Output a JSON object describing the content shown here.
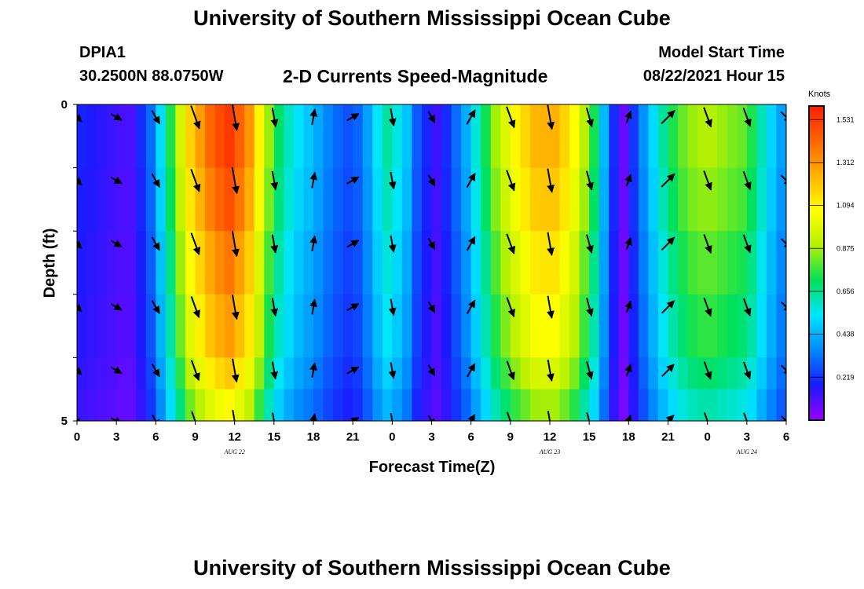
{
  "header": {
    "title": "University of Southern Mississippi Ocean Cube",
    "station": "DPIA1",
    "coordinates": "30.2500N  88.0750W",
    "subtitle": "2-D Currents Speed-Magnitude",
    "model_start_label": "Model Start Time",
    "model_start_value": "08/22/2021 Hour 15"
  },
  "footer": {
    "title": "University of Southern Mississippi Ocean Cube"
  },
  "chart_data": {
    "type": "heatmap",
    "title": "2-D Currents Speed-Magnitude",
    "xlabel": "Forecast Time(Z)",
    "ylabel": "Depth (ft)",
    "x_ticks": [
      "0",
      "3",
      "6",
      "9",
      "12",
      "15",
      "18",
      "21",
      "0",
      "3",
      "6",
      "9",
      "12",
      "15",
      "18",
      "21",
      "0",
      "3",
      "6"
    ],
    "x_range_hours": [
      0,
      54
    ],
    "date_labels": [
      {
        "label": "AUG 22",
        "hour": 12
      },
      {
        "label": "AUG 23",
        "hour": 36
      },
      {
        "label": "AUG 24",
        "hour": 51
      }
    ],
    "y_ticks": [
      "0",
      "5"
    ],
    "ylim": [
      0,
      5
    ],
    "colorbar": {
      "unit_label": "Knots",
      "ticks": [
        "1.531",
        "1.312",
        "1.094",
        "0.875",
        "0.656",
        "0.438",
        "0.219"
      ],
      "tick_values": [
        1.531,
        1.312,
        1.094,
        0.875,
        0.656,
        0.438,
        0.219
      ],
      "range": [
        0.0,
        1.6
      ],
      "colors": [
        "#9b00ff",
        "#1a1aff",
        "#0088ff",
        "#00e6ff",
        "#00e05a",
        "#b4f000",
        "#ffff00",
        "#ffb400",
        "#ff6400",
        "#ff1e00"
      ]
    },
    "depth_layers": [
      0,
      1,
      2,
      3,
      4,
      4.5
    ],
    "speed_profile": [
      {
        "hour": 0,
        "speed": 0.2
      },
      {
        "hour": 2,
        "speed": 0.15
      },
      {
        "hour": 4,
        "speed": 0.1
      },
      {
        "hour": 5.5,
        "speed": 0.28
      },
      {
        "hour": 6.5,
        "speed": 0.55
      },
      {
        "hour": 7.5,
        "speed": 0.85
      },
      {
        "hour": 8.5,
        "speed": 1.15
      },
      {
        "hour": 10,
        "speed": 1.4
      },
      {
        "hour": 11.5,
        "speed": 1.55
      },
      {
        "hour": 13,
        "speed": 1.35
      },
      {
        "hour": 14,
        "speed": 1.05
      },
      {
        "hour": 15,
        "speed": 0.75
      },
      {
        "hour": 16.5,
        "speed": 0.55
      },
      {
        "hour": 18,
        "speed": 0.45
      },
      {
        "hour": 19.5,
        "speed": 0.32
      },
      {
        "hour": 21,
        "speed": 0.25
      },
      {
        "hour": 22,
        "speed": 0.38
      },
      {
        "hour": 23.5,
        "speed": 0.65
      },
      {
        "hour": 25,
        "speed": 0.5
      },
      {
        "hour": 26,
        "speed": 0.25
      },
      {
        "hour": 27.5,
        "speed": 0.12
      },
      {
        "hour": 29.5,
        "speed": 0.4
      },
      {
        "hour": 30.5,
        "speed": 0.6
      },
      {
        "hour": 32,
        "speed": 0.9
      },
      {
        "hour": 33.5,
        "speed": 1.1
      },
      {
        "hour": 35,
        "speed": 1.25
      },
      {
        "hour": 36.5,
        "speed": 1.25
      },
      {
        "hour": 38,
        "speed": 1.05
      },
      {
        "hour": 39.5,
        "speed": 0.7
      },
      {
        "hour": 40.5,
        "speed": 0.3
      },
      {
        "hour": 41.5,
        "speed": 0.05
      },
      {
        "hour": 42.5,
        "speed": 0.25
      },
      {
        "hour": 43.5,
        "speed": 0.45
      },
      {
        "hour": 45,
        "speed": 0.7
      },
      {
        "hour": 46.5,
        "speed": 0.85
      },
      {
        "hour": 48,
        "speed": 0.9
      },
      {
        "hour": 49.5,
        "speed": 0.85
      },
      {
        "hour": 51,
        "speed": 0.8
      },
      {
        "hour": 52.5,
        "speed": 0.55
      },
      {
        "hour": 54,
        "speed": 0.35
      }
    ],
    "layer_factors": [
      1.0,
      0.96,
      0.9,
      0.85,
      0.78,
      0.7
    ],
    "vector_hours": [
      0,
      3,
      6,
      9,
      12,
      15,
      18,
      21,
      24,
      27,
      30,
      33,
      36,
      39,
      42,
      45,
      48,
      51,
      54
    ],
    "vector_directions_deg": [
      135,
      120,
      150,
      160,
      170,
      170,
      10,
      60,
      170,
      150,
      30,
      160,
      170,
      165,
      20,
      45,
      160,
      160,
      135
    ],
    "vector_depths": [
      0.2,
      1.2,
      2.2,
      3.2,
      4.2,
      5.0
    ]
  }
}
